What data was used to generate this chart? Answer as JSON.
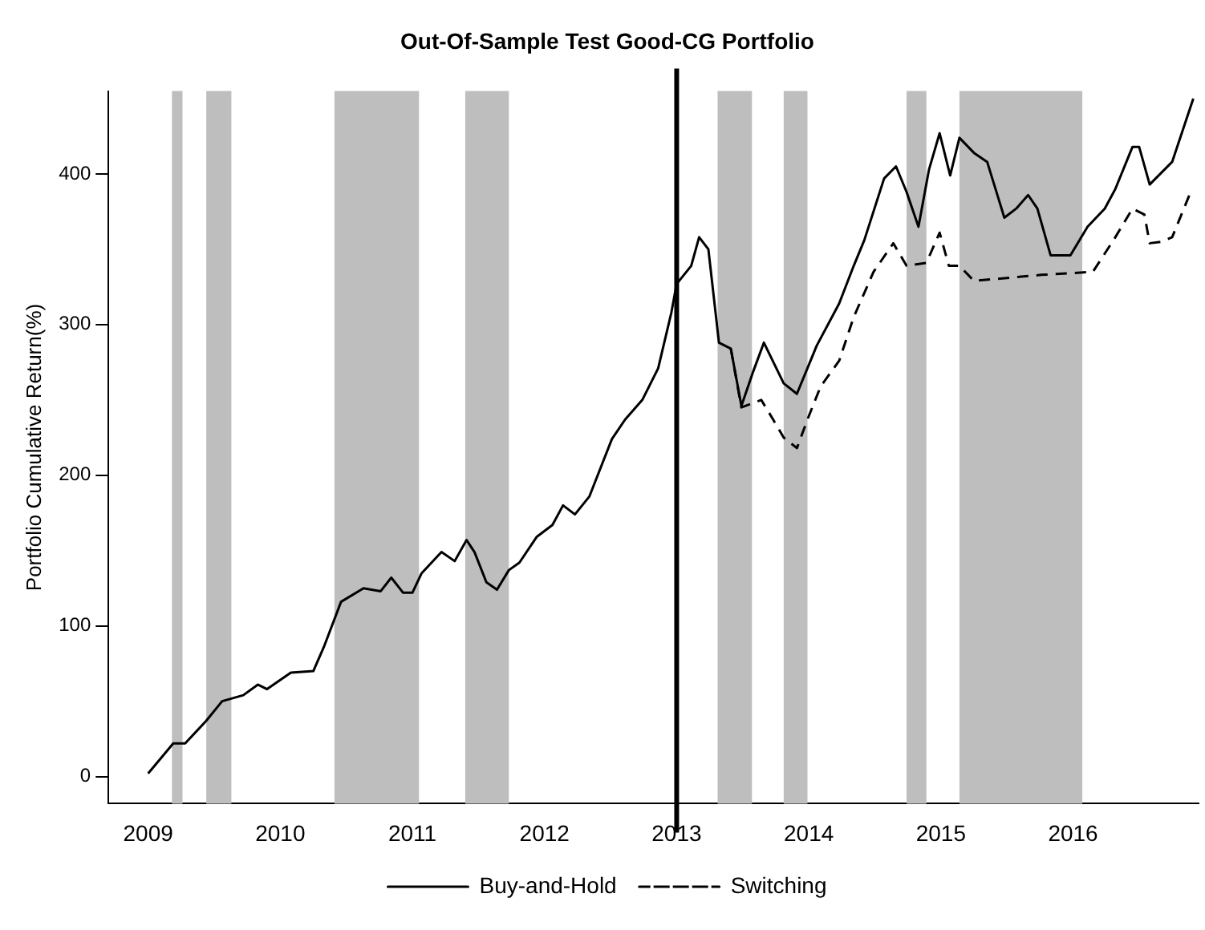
{
  "chart_data": {
    "type": "line",
    "title": "Out-Of-Sample Test Good-CG Portfolio",
    "ylabel": "Portfolio Cumulative Return(%)",
    "xlim": [
      2008.7,
      2016.95
    ],
    "xticks": [
      2009,
      2010,
      2011,
      2012,
      2013,
      2014,
      2015,
      2016
    ],
    "ylim": [
      -18,
      455
    ],
    "yticks": [
      0,
      100,
      200,
      300,
      400
    ],
    "grid": false,
    "legend": "bottom",
    "marker": "none",
    "series": [
      {
        "name": "Buy-and-Hold",
        "color": "#000000",
        "line_style": "solid",
        "x": [
          2009.0,
          2009.19,
          2009.28,
          2009.44,
          2009.56,
          2009.72,
          2009.83,
          2009.9,
          2010.08,
          2010.25,
          2010.33,
          2010.46,
          2010.63,
          2010.76,
          2010.84,
          2010.93,
          2011.0,
          2011.07,
          2011.22,
          2011.32,
          2011.41,
          2011.47,
          2011.56,
          2011.64,
          2011.73,
          2011.81,
          2011.94,
          2012.06,
          2012.14,
          2012.23,
          2012.34,
          2012.51,
          2012.61,
          2012.74,
          2012.86,
          2012.96,
          2013.0,
          2013.11,
          2013.17,
          2013.24,
          2013.32,
          2013.41,
          2013.49,
          2013.58,
          2013.66,
          2013.81,
          2013.91,
          2014.06,
          2014.23,
          2014.34,
          2014.42,
          2014.57,
          2014.66,
          2014.74,
          2014.83,
          2014.91,
          2014.99,
          2015.07,
          2015.14,
          2015.25,
          2015.35,
          2015.48,
          2015.57,
          2015.66,
          2015.73,
          2015.83,
          2015.98,
          2016.11,
          2016.24,
          2016.32,
          2016.45,
          2016.5,
          2016.58,
          2016.75,
          2016.91
        ],
        "values": [
          2,
          22,
          22,
          37,
          50,
          54,
          61,
          58,
          69,
          70,
          86,
          116,
          125,
          123,
          132,
          122,
          122,
          135,
          149,
          143,
          157,
          149,
          129,
          124,
          137,
          142,
          159,
          167,
          180,
          174,
          186,
          224,
          237,
          250,
          271,
          308,
          327,
          339,
          358,
          350,
          288,
          284,
          246,
          269,
          288,
          261,
          254,
          286,
          314,
          339,
          356,
          397,
          405,
          388,
          365,
          403,
          427,
          399,
          424,
          414,
          408,
          371,
          377,
          386,
          377,
          346,
          346,
          365,
          377,
          390,
          418,
          418,
          393,
          408,
          450
        ]
      },
      {
        "name": "Switching",
        "color": "#000000",
        "line_style": "dashed",
        "x": [
          2013.41,
          2013.49,
          2013.64,
          2013.73,
          2013.81,
          2013.91,
          2013.99,
          2014.09,
          2014.23,
          2014.34,
          2014.49,
          2014.64,
          2014.74,
          2014.89,
          2014.99,
          2015.06,
          2015.14,
          2015.25,
          2015.76,
          2016.15,
          2016.32,
          2016.45,
          2016.54,
          2016.58,
          2016.67,
          2016.75,
          2016.89
        ],
        "values": [
          284,
          245,
          250,
          237,
          225,
          218,
          237,
          259,
          276,
          305,
          335,
          354,
          339,
          341,
          361,
          339,
          339,
          329,
          333,
          335,
          358,
          377,
          373,
          354,
          355,
          358,
          388
        ]
      }
    ],
    "bands": [
      {
        "axis": "x",
        "from": 2009.18,
        "to": 2009.26,
        "color": "#bebebe"
      },
      {
        "axis": "x",
        "from": 2009.44,
        "to": 2009.63,
        "color": "#bebebe"
      },
      {
        "axis": "x",
        "from": 2010.41,
        "to": 2011.05,
        "color": "#bebebe"
      },
      {
        "axis": "x",
        "from": 2011.4,
        "to": 2011.73,
        "color": "#bebebe"
      },
      {
        "axis": "x",
        "from": 2013.31,
        "to": 2013.57,
        "color": "#bebebe"
      },
      {
        "axis": "x",
        "from": 2013.81,
        "to": 2013.99,
        "color": "#bebebe"
      },
      {
        "axis": "x",
        "from": 2014.74,
        "to": 2014.89,
        "color": "#bebebe"
      },
      {
        "axis": "x",
        "from": 2015.14,
        "to": 2016.07,
        "color": "#bebebe"
      }
    ],
    "ref_lines": [
      {
        "axis": "x",
        "value": 2013,
        "color": "#000000"
      }
    ]
  }
}
